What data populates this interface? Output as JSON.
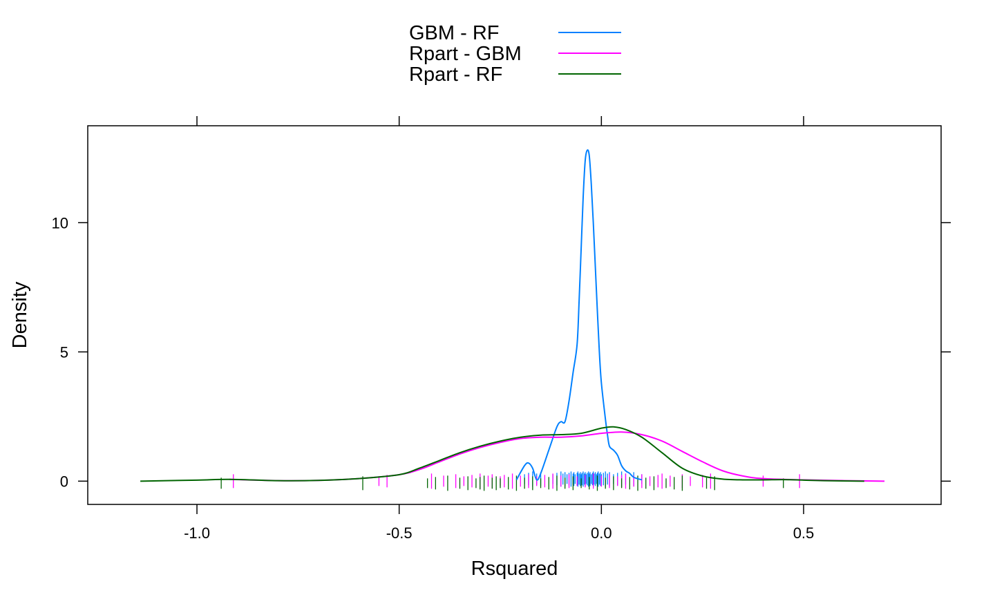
{
  "chart_data": {
    "type": "line",
    "subtype": "density",
    "title": "",
    "xlabel": "Rsquared",
    "ylabel": "Density",
    "xlim": [
      -1.27,
      0.84
    ],
    "ylim": [
      -0.9,
      13.75
    ],
    "x_ticks": [
      {
        "value": -1.0,
        "label": "-1.0"
      },
      {
        "value": -0.5,
        "label": "-0.5"
      },
      {
        "value": 0.0,
        "label": "0.0"
      },
      {
        "value": 0.5,
        "label": "0.5"
      }
    ],
    "y_ticks": [
      {
        "value": 0,
        "label": "0"
      },
      {
        "value": 5,
        "label": "5"
      },
      {
        "value": 10,
        "label": "10"
      }
    ],
    "grid": false,
    "legend_position": "top-center",
    "series": [
      {
        "name": "GBM - RF",
        "color": "#0080ff",
        "x": [
          -0.21,
          -0.19,
          -0.18,
          -0.17,
          -0.16,
          -0.15,
          -0.13,
          -0.11,
          -0.1,
          -0.09,
          -0.08,
          -0.07,
          -0.06,
          -0.055,
          -0.05,
          -0.045,
          -0.04,
          -0.035,
          -0.03,
          -0.025,
          -0.02,
          -0.015,
          -0.01,
          -0.005,
          0.0,
          0.01,
          0.015,
          0.02,
          0.03,
          0.04,
          0.05,
          0.06,
          0.07,
          0.08,
          0.1
        ],
        "y": [
          0.05,
          0.6,
          0.7,
          0.5,
          0.05,
          0.3,
          1.2,
          2.1,
          2.3,
          2.3,
          3.1,
          4.2,
          5.3,
          7.0,
          9.0,
          11.0,
          12.4,
          12.8,
          12.6,
          11.5,
          10.0,
          8.3,
          6.6,
          5.0,
          3.8,
          2.4,
          1.8,
          1.35,
          1.2,
          1.0,
          0.6,
          0.4,
          0.3,
          0.15,
          0.05
        ]
      },
      {
        "name": "Rpart - GBM",
        "color": "#ff00ff",
        "x": [
          -0.92,
          -0.8,
          -0.7,
          -0.6,
          -0.5,
          -0.45,
          -0.4,
          -0.35,
          -0.3,
          -0.25,
          -0.2,
          -0.15,
          -0.1,
          -0.05,
          0.0,
          0.05,
          0.1,
          0.15,
          0.2,
          0.25,
          0.3,
          0.35,
          0.4,
          0.5,
          0.6,
          0.7
        ],
        "y": [
          0.07,
          0.02,
          0.03,
          0.1,
          0.25,
          0.45,
          0.75,
          1.05,
          1.3,
          1.5,
          1.65,
          1.7,
          1.7,
          1.75,
          1.85,
          1.9,
          1.8,
          1.55,
          1.15,
          0.75,
          0.4,
          0.2,
          0.1,
          0.05,
          0.02,
          0.0
        ]
      },
      {
        "name": "Rpart - RF",
        "color": "#006400",
        "x": [
          -1.14,
          -1.0,
          -0.92,
          -0.8,
          -0.7,
          -0.6,
          -0.5,
          -0.45,
          -0.4,
          -0.35,
          -0.3,
          -0.25,
          -0.2,
          -0.15,
          -0.1,
          -0.05,
          0.0,
          0.03,
          0.06,
          0.1,
          0.15,
          0.2,
          0.25,
          0.3,
          0.35,
          0.4,
          0.45,
          0.5,
          0.55,
          0.65
        ],
        "y": [
          0.0,
          0.04,
          0.07,
          0.02,
          0.03,
          0.1,
          0.25,
          0.5,
          0.8,
          1.1,
          1.35,
          1.55,
          1.7,
          1.78,
          1.8,
          1.85,
          2.05,
          2.1,
          2.0,
          1.7,
          1.1,
          0.5,
          0.2,
          0.08,
          0.05,
          0.05,
          0.06,
          0.04,
          0.02,
          0.0
        ]
      }
    ],
    "rug": [
      {
        "series": "GBM - RF",
        "values": [
          -0.19,
          -0.18,
          -0.17,
          -0.16,
          -0.15,
          -0.12,
          -0.11,
          -0.1,
          -0.095,
          -0.09,
          -0.085,
          -0.08,
          -0.075,
          -0.07,
          -0.068,
          -0.065,
          -0.06,
          -0.058,
          -0.055,
          -0.052,
          -0.05,
          -0.048,
          -0.045,
          -0.042,
          -0.04,
          -0.038,
          -0.035,
          -0.032,
          -0.03,
          -0.028,
          -0.025,
          -0.022,
          -0.02,
          -0.018,
          -0.015,
          -0.012,
          -0.01,
          -0.008,
          -0.005,
          -0.002,
          0.0,
          0.005,
          0.01,
          0.015,
          0.02,
          0.03,
          0.04,
          0.05,
          0.06,
          0.08,
          0.1
        ]
      },
      {
        "series": "Rpart - GBM",
        "values": [
          -0.91,
          -0.55,
          -0.53,
          -0.42,
          -0.39,
          -0.36,
          -0.34,
          -0.32,
          -0.3,
          -0.28,
          -0.27,
          -0.25,
          -0.24,
          -0.22,
          -0.2,
          -0.18,
          -0.16,
          -0.14,
          -0.12,
          -0.1,
          -0.08,
          -0.06,
          -0.04,
          -0.02,
          0.0,
          0.02,
          0.04,
          0.05,
          0.06,
          0.08,
          0.1,
          0.12,
          0.14,
          0.15,
          0.17,
          0.2,
          0.22,
          0.25,
          0.27,
          0.4,
          0.49
        ]
      },
      {
        "series": "Rpart - RF",
        "values": [
          -0.94,
          -0.59,
          -0.43,
          -0.41,
          -0.38,
          -0.35,
          -0.33,
          -0.31,
          -0.3,
          -0.29,
          -0.27,
          -0.26,
          -0.25,
          -0.23,
          -0.21,
          -0.19,
          -0.17,
          -0.15,
          -0.13,
          -0.11,
          -0.09,
          -0.07,
          -0.05,
          -0.03,
          -0.01,
          0.01,
          0.03,
          0.05,
          0.07,
          0.09,
          0.11,
          0.13,
          0.16,
          0.18,
          0.2,
          0.26,
          0.28,
          0.45
        ]
      }
    ]
  }
}
